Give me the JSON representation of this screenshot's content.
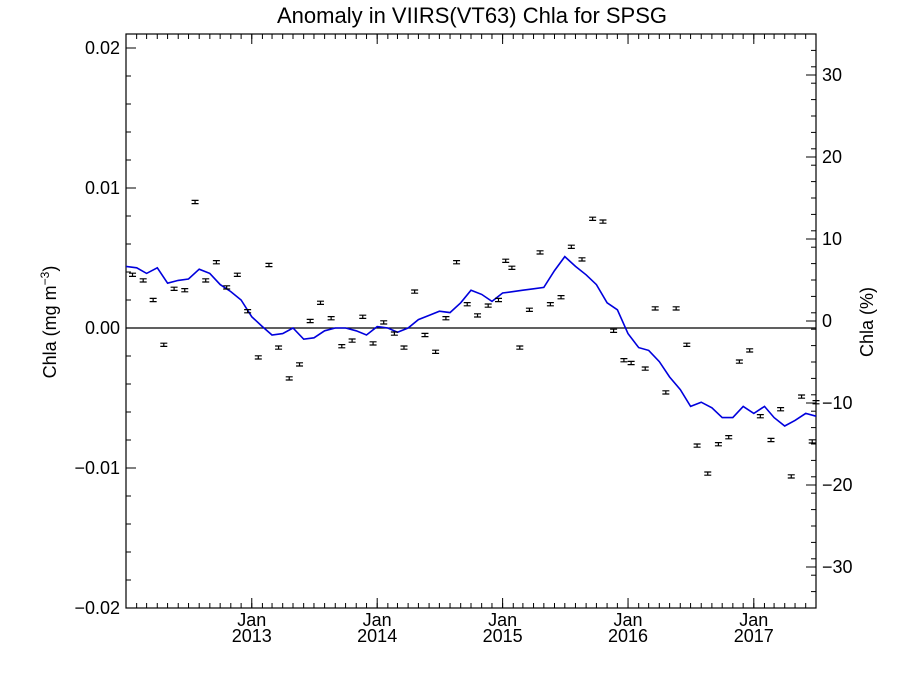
{
  "colors": {
    "background": "#ffffff",
    "axes": "#000000",
    "line": "#0000dd",
    "points": "#000000"
  },
  "chart_data": {
    "type": "scatter",
    "title": "Anomaly in VIIRS(VT63) Chla for SPSG",
    "ylabel_left": "Chla (mg m",
    "ylabel_left_sup": "−3",
    "ylabel_left_close": ")",
    "ylabel_right": "Chla (%)",
    "xlim": [
      "2012-01-01",
      "2017-07-01"
    ],
    "ylim_left": [
      -0.02,
      0.021
    ],
    "ylim_right": [
      -35,
      35
    ],
    "y_ticks_left": [
      "−0.02",
      "−0.01",
      "0.00",
      "0.01",
      "0.02"
    ],
    "y_ticks_left_values": [
      -0.02,
      -0.01,
      0.0,
      0.01,
      0.02
    ],
    "y_ticks_right": [
      "−30",
      "−20",
      "−10",
      "0",
      "10",
      "20",
      "30"
    ],
    "y_ticks_right_values": [
      -30,
      -20,
      -10,
      0,
      10,
      20,
      30
    ],
    "x_ticks": [
      {
        "date": "2013-01-01",
        "month": "Jan",
        "year": "2013"
      },
      {
        "date": "2014-01-01",
        "month": "Jan",
        "year": "2014"
      },
      {
        "date": "2015-01-01",
        "month": "Jan",
        "year": "2015"
      },
      {
        "date": "2016-01-01",
        "month": "Jan",
        "year": "2016"
      },
      {
        "date": "2017-01-01",
        "month": "Jan",
        "year": "2017"
      }
    ],
    "zero_line": true,
    "grid": false,
    "series": [
      {
        "type": "line",
        "axis": "left",
        "color": "#0000dd",
        "x": [
          "2012-01-01",
          "2012-02-01",
          "2012-03-01",
          "2012-04-01",
          "2012-05-01",
          "2012-06-01",
          "2012-07-01",
          "2012-08-01",
          "2012-09-01",
          "2012-10-01",
          "2012-11-01",
          "2012-12-01",
          "2013-01-01",
          "2013-02-01",
          "2013-03-01",
          "2013-04-01",
          "2013-05-01",
          "2013-06-01",
          "2013-07-01",
          "2013-08-01",
          "2013-09-01",
          "2013-10-01",
          "2013-11-01",
          "2013-12-01",
          "2014-01-01",
          "2014-02-01",
          "2014-03-01",
          "2014-04-01",
          "2014-05-01",
          "2014-06-01",
          "2014-07-01",
          "2014-08-01",
          "2014-09-01",
          "2014-10-01",
          "2014-11-01",
          "2014-12-01",
          "2015-01-01",
          "2015-02-01",
          "2015-03-01",
          "2015-04-01",
          "2015-05-01",
          "2015-06-01",
          "2015-07-01",
          "2015-08-01",
          "2015-09-01",
          "2015-10-01",
          "2015-11-01",
          "2015-12-01",
          "2016-01-01",
          "2016-02-01",
          "2016-03-01",
          "2016-04-01",
          "2016-05-01",
          "2016-06-01",
          "2016-07-01",
          "2016-08-01",
          "2016-09-01",
          "2016-10-01",
          "2016-11-01",
          "2016-12-01",
          "2017-01-01",
          "2017-02-01",
          "2017-03-01",
          "2017-04-01",
          "2017-05-01",
          "2017-06-01",
          "2017-07-01"
        ],
        "y": [
          0.0044,
          0.0043,
          0.0039,
          0.0043,
          0.0032,
          0.0034,
          0.0035,
          0.0042,
          0.0039,
          0.0031,
          0.0026,
          0.002,
          0.0008,
          0.0001,
          -0.0005,
          -0.0004,
          0.0,
          -0.0008,
          -0.0007,
          -0.0002,
          0.0,
          0.0,
          -0.0002,
          -0.0005,
          0.0001,
          0.0,
          -0.0003,
          0.0,
          0.0006,
          0.0009,
          0.0012,
          0.0011,
          0.0018,
          0.0027,
          0.0024,
          0.0019,
          0.0025,
          0.0026,
          0.0027,
          0.0028,
          0.0029,
          0.0041,
          0.0051,
          0.0044,
          0.0038,
          0.0031,
          0.0018,
          0.0013,
          -0.0004,
          -0.0014,
          -0.0016,
          -0.0024,
          -0.0035,
          -0.0044,
          -0.0056,
          -0.0053,
          -0.0057,
          -0.0064,
          -0.0064,
          -0.0056,
          -0.0061,
          -0.0056,
          -0.0064,
          -0.007,
          -0.0066,
          -0.0061,
          -0.0063
        ]
      },
      {
        "type": "errorbar",
        "axis": "left",
        "color": "#000000",
        "x": [
          "2012-01-20",
          "2012-02-20",
          "2012-03-20",
          "2012-04-20",
          "2012-05-20",
          "2012-06-20",
          "2012-07-20",
          "2012-08-20",
          "2012-09-20",
          "2012-10-20",
          "2012-11-20",
          "2012-12-20",
          "2013-01-20",
          "2013-02-20",
          "2013-03-20",
          "2013-04-20",
          "2013-05-20",
          "2013-06-20",
          "2013-07-20",
          "2013-08-20",
          "2013-09-20",
          "2013-10-20",
          "2013-11-20",
          "2013-12-20",
          "2014-01-20",
          "2014-02-20",
          "2014-03-20",
          "2014-04-20",
          "2014-05-20",
          "2014-06-20",
          "2014-07-20",
          "2014-08-20",
          "2014-09-20",
          "2014-10-20",
          "2014-11-20",
          "2014-12-20",
          "2015-01-10",
          "2015-01-28",
          "2015-02-20",
          "2015-03-20",
          "2015-04-20",
          "2015-05-20",
          "2015-06-20",
          "2015-07-20",
          "2015-08-20",
          "2015-09-20",
          "2015-10-20",
          "2015-11-20",
          "2015-12-20",
          "2016-01-10",
          "2016-02-20",
          "2016-03-20",
          "2016-04-20",
          "2016-05-20",
          "2016-06-20",
          "2016-07-20",
          "2016-08-20",
          "2016-09-20",
          "2016-10-20",
          "2016-11-20",
          "2016-12-20",
          "2017-01-20",
          "2017-02-20",
          "2017-03-20",
          "2017-04-20",
          "2017-05-20",
          "2017-06-20",
          "2017-07-01"
        ],
        "y": [
          0.0038,
          0.0034,
          0.002,
          -0.0012,
          0.0028,
          0.0027,
          0.009,
          0.0034,
          0.0047,
          0.0029,
          0.0038,
          0.0012,
          -0.0021,
          0.0045,
          -0.0014,
          -0.0036,
          -0.0026,
          0.0005,
          0.0018,
          0.0007,
          -0.0013,
          -0.0009,
          0.0008,
          -0.0011,
          0.0004,
          -0.0004,
          -0.0014,
          0.0026,
          -0.0005,
          -0.0017,
          0.0007,
          0.0047,
          0.0017,
          0.0009,
          0.0016,
          0.002,
          0.0048,
          0.0043,
          -0.0014,
          0.0013,
          0.0054,
          0.0017,
          0.0022,
          0.0058,
          0.0049,
          0.0078,
          0.0076,
          -0.0002,
          -0.0023,
          -0.0025,
          -0.0029,
          0.0014,
          -0.0046,
          0.0014,
          -0.0012,
          -0.0084,
          -0.0104,
          -0.0083,
          -0.0078,
          -0.0024,
          -0.0016,
          -0.0063,
          -0.008,
          -0.0058,
          -0.0106,
          -0.0049,
          -0.0081,
          -0.0053
        ]
      }
    ]
  }
}
